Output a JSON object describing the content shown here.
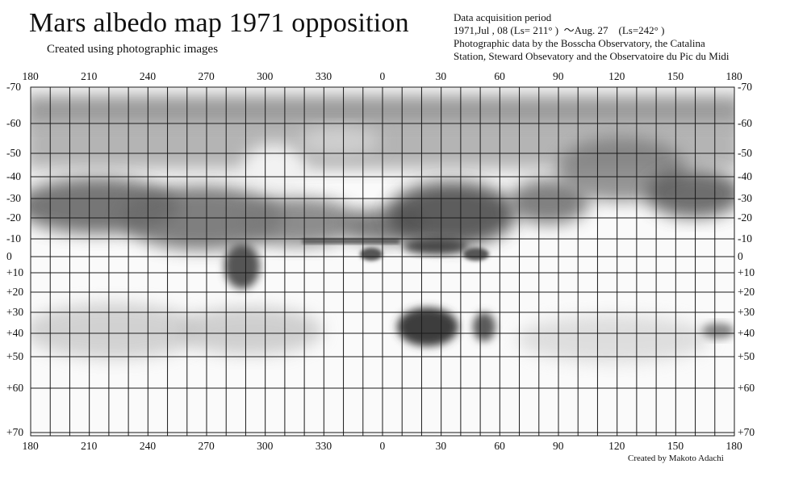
{
  "header": {
    "title": "Mars albedo map 1971   opposition",
    "subtitle": "Created using photographic images"
  },
  "info": {
    "line1": "Data acquisition period",
    "line2": "1971,Jul , 08 (Ls= 211° )  ～Aug. 27    (Ls=242° )",
    "line3": "Photographic data by the Bosscha Observatory, the Catalina",
    "line4": "Station, Steward Obsevatory and the Observatoire du Pic du Midi"
  },
  "credit": "Created by Makoto Adachi",
  "longitude_labels": [
    "180",
    "210",
    "240",
    "270",
    "300",
    "330",
    "0",
    "30",
    "60",
    "90",
    "120",
    "150",
    "180"
  ],
  "latitude_labels": [
    "-70",
    "-60",
    "-50",
    "-40",
    "-30",
    "-20",
    "-10",
    "0",
    "+10",
    "+20",
    "+30",
    "+40",
    "+50",
    "+60",
    "+70"
  ]
}
